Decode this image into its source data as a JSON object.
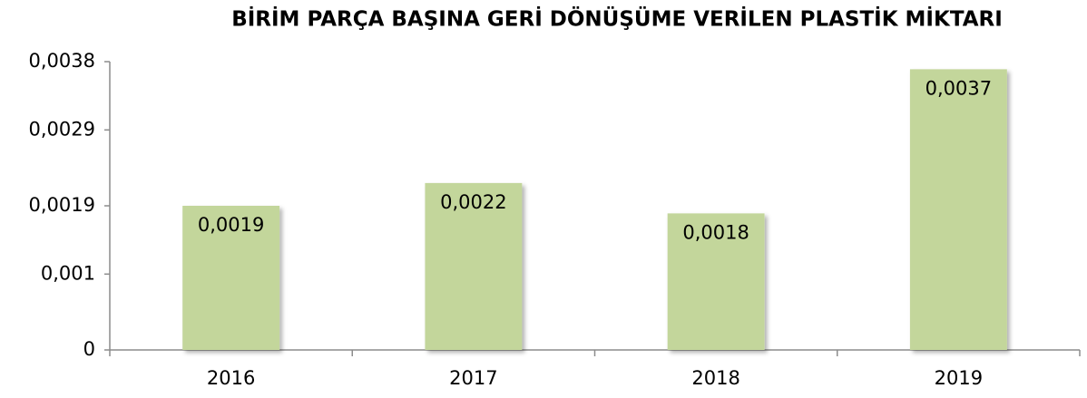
{
  "chart_data": {
    "type": "bar",
    "title": "BİRİM PARÇA BAŞINA GERİ DÖNÜŞÜME VERİLEN PLASTİK MİKTARI",
    "categories": [
      "2016",
      "2017",
      "2018",
      "2019"
    ],
    "values": [
      0.0019,
      0.0022,
      0.0018,
      0.0037
    ],
    "value_labels": [
      "0,0019",
      "0,0022",
      "0,0018",
      "0,0037"
    ],
    "color": "#c3d69b",
    "ylim": [
      0,
      0.0038
    ],
    "yticks": [
      0,
      {
        "value": 0.001,
        "label": "0,001"
      },
      {
        "value": 0.0019,
        "label": "0,0019"
      },
      {
        "value": 0.0029,
        "label": "0,0029"
      },
      {
        "value": 0.0038,
        "label": "0,0038"
      }
    ],
    "grid": false
  }
}
